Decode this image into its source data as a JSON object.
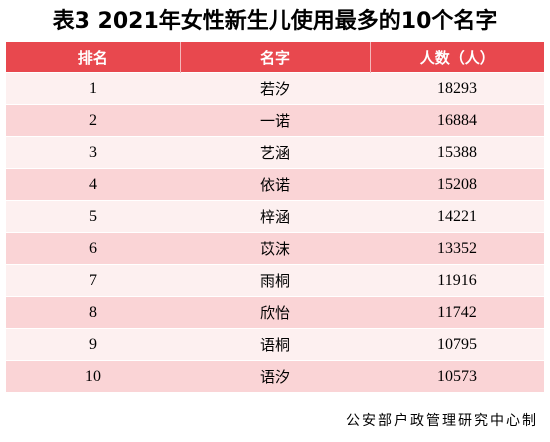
{
  "title": "表3  2021年女性新生儿使用最多的10个名字",
  "chart_data": {
    "type": "table",
    "columns": [
      "排名",
      "名字",
      "人数（人）"
    ],
    "rows": [
      {
        "rank": "1",
        "name": "若汐",
        "count": "18293"
      },
      {
        "rank": "2",
        "name": "一诺",
        "count": "16884"
      },
      {
        "rank": "3",
        "name": "艺涵",
        "count": "15388"
      },
      {
        "rank": "4",
        "name": "依诺",
        "count": "15208"
      },
      {
        "rank": "5",
        "name": "梓涵",
        "count": "14221"
      },
      {
        "rank": "6",
        "name": "苡沫",
        "count": "13352"
      },
      {
        "rank": "7",
        "name": "雨桐",
        "count": "11916"
      },
      {
        "rank": "8",
        "name": "欣怡",
        "count": "11742"
      },
      {
        "rank": "9",
        "name": "语桐",
        "count": "10795"
      },
      {
        "rank": "10",
        "name": "语汐",
        "count": "10573"
      }
    ]
  },
  "source": "公安部户政管理研究中心制",
  "colors": {
    "header_bg": "#e8484e",
    "header_text": "#ffffff",
    "row_light": "#fdf0f0",
    "row_dark": "#fad4d6"
  }
}
